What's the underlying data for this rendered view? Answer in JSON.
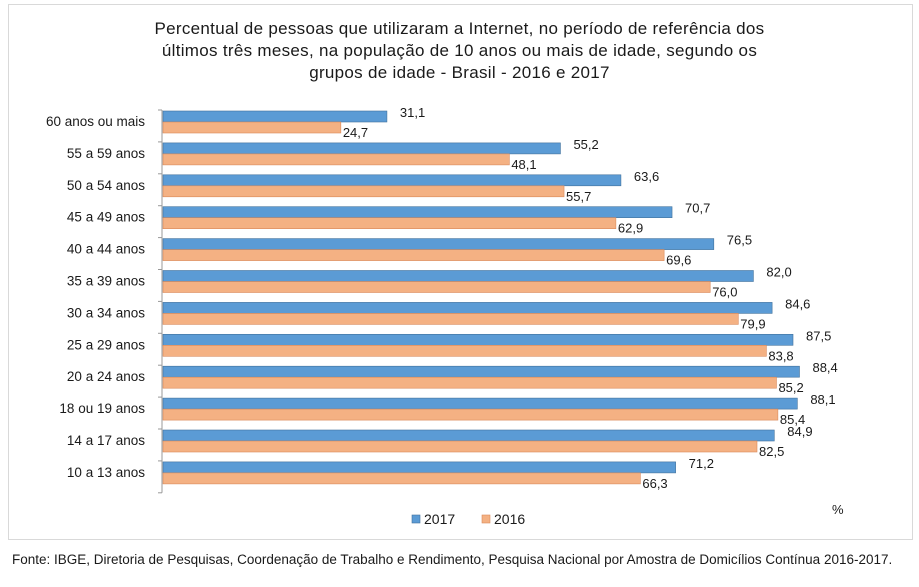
{
  "chart_data": {
    "type": "bar",
    "orientation": "horizontal",
    "title_lines": [
      "Percentual de pessoas que utilizaram a Internet, no período de referência dos",
      "últimos três meses, na população de 10 anos ou mais de idade, segundo os",
      "grupos de idade - Brasil - 2016 e 2017"
    ],
    "categories": [
      "60 anos ou mais",
      "55 a 59 anos",
      "50 a 54 anos",
      "45 a 49 anos",
      "40 a 44 anos",
      "35 a 39 anos",
      "30 a 34 anos",
      "25 a 29 anos",
      "20 a 24 anos",
      "18 ou 19 anos",
      "14 a 17 anos",
      "10 a 13 anos"
    ],
    "series": [
      {
        "name": "2017",
        "color": "#5b9bd5",
        "values": [
          31.1,
          55.2,
          63.6,
          70.7,
          76.5,
          82.0,
          84.6,
          87.5,
          88.4,
          88.1,
          84.9,
          71.2
        ],
        "labels": [
          "31,1",
          "55,2",
          "63,6",
          "70,7",
          "76,5",
          "82,0",
          "84,6",
          "87,5",
          "88,4",
          "88,1",
          "84,9",
          "71,2"
        ]
      },
      {
        "name": "2016",
        "color": "#f4b183",
        "values": [
          24.7,
          48.1,
          55.7,
          62.9,
          69.6,
          76.0,
          79.9,
          83.8,
          85.2,
          85.4,
          82.5,
          66.3
        ],
        "labels": [
          "24,7",
          "48,1",
          "55,7",
          "62,9",
          "69,6",
          "76,0",
          "79,9",
          "83,8",
          "85,2",
          "85,4",
          "82,5",
          "66,3"
        ]
      }
    ],
    "xlim": [
      0,
      100
    ],
    "unit_label": "%",
    "legend": "bottom",
    "grid": false
  },
  "source": "Fonte: IBGE, Diretoria de Pesquisas, Coordenação de Trabalho e Rendimento, Pesquisa Nacional por Amostra de Domicílios Contínua 2016-2017."
}
